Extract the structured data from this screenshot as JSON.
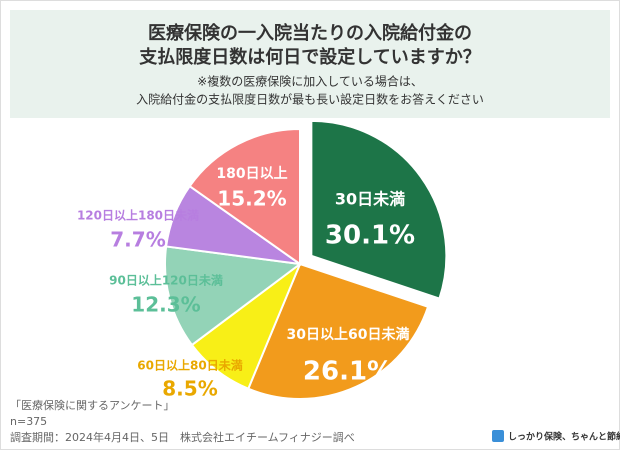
{
  "header": {
    "title_lines": [
      "医療保険の一入院当たりの入院給付金の",
      "支払限度日数は何日で設定していますか？"
    ],
    "note_lines": [
      "※複数の医療保険に加入している場合は、",
      "入院給付金の支払限度日数が最も長い設定日数をお答えください"
    ]
  },
  "chart_data": {
    "type": "pie",
    "categories": [
      "30日未満",
      "30日以上60日未満",
      "60日以上80日未満",
      "90日以上120日未満",
      "120日以上180日未満",
      "180日以上"
    ],
    "values": [
      30.1,
      26.1,
      8.5,
      12.3,
      7.7,
      15.2
    ],
    "value_labels": [
      "30.1%",
      "26.1%",
      "8.5%",
      "12.3%",
      "7.7%",
      "15.2%"
    ],
    "colors": [
      "#1d7548",
      "#f29b1c",
      "#f8ef17",
      "#93d3b7",
      "#b985e0",
      "#f58282"
    ]
  },
  "footer": {
    "source": "「医療保険に関するアンケート」",
    "sample": "n=375",
    "period": "調査期間：2024年4月4日、5日　株式会社エイチームフィナジー調べ",
    "logo": "しっかり保険、ちゃんと節約。"
  }
}
